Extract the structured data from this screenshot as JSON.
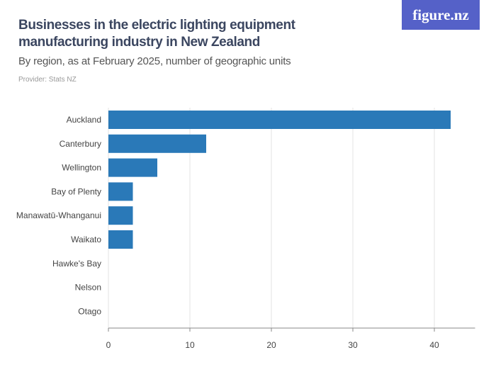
{
  "header": {
    "title": "Businesses in the electric lighting equipment manufacturing industry in New Zealand",
    "subtitle": "By region, as at February 2025, number of geographic units",
    "provider": "Provider: Stats NZ",
    "logo": "figure.nz"
  },
  "chart_data": {
    "type": "bar",
    "orientation": "horizontal",
    "categories": [
      "Auckland",
      "Canterbury",
      "Wellington",
      "Bay of Plenty",
      "Manawatū-Whanganui",
      "Waikato",
      "Hawke's Bay",
      "Nelson",
      "Otago"
    ],
    "values": [
      42,
      12,
      6,
      3,
      3,
      3,
      0,
      0,
      0
    ],
    "xlim": [
      0,
      45
    ],
    "xticks": [
      0,
      10,
      20,
      30,
      40
    ],
    "grid": true,
    "bar_color": "#2a79b8"
  }
}
